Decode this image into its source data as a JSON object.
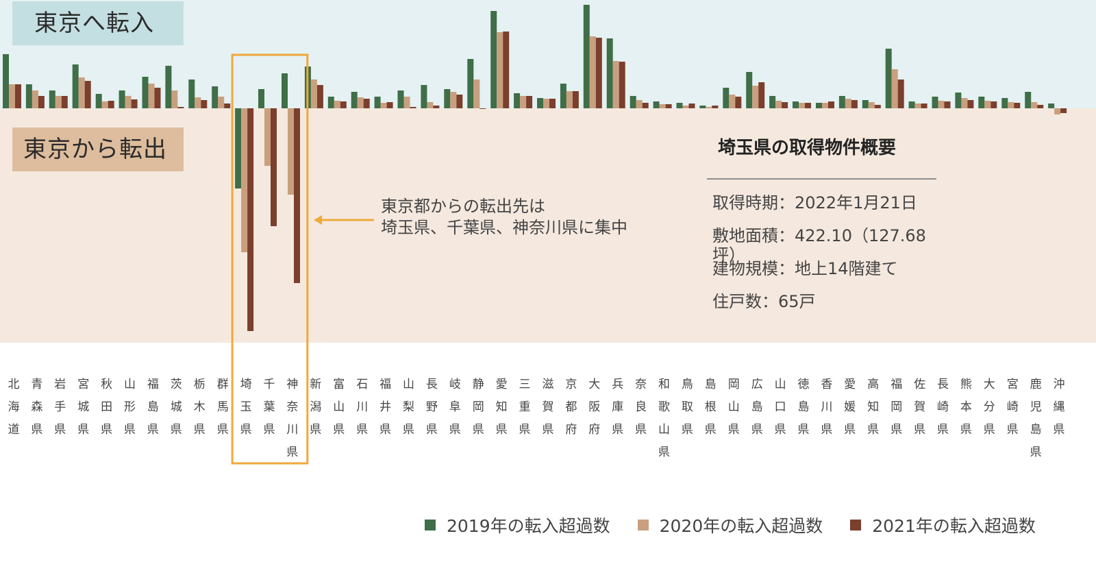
{
  "labels": {
    "inflow": "東京へ転入",
    "outflow": "東京から転出"
  },
  "annotation": {
    "line1": "東京都からの転出先は",
    "line2": "埼玉県、千葉県、神奈川県に集中"
  },
  "panel": {
    "title": "埼玉県の取得物件概要",
    "items": [
      "取得時期：2022年1月21日",
      "敷地面積：422.10（127.68坪）",
      "建物規模：地上14階建て",
      "住戸数：65戸"
    ]
  },
  "colors": {
    "2019": "#3f6e48",
    "2020": "#c9a07f",
    "2021": "#7b3f2e",
    "inflow_bg": "#e5f1f2",
    "outflow_bg": "#f5e9df",
    "highlight": "#f0a93b",
    "arrow": "#f0a93b"
  },
  "chart_data": {
    "type": "bar",
    "categories": [
      "北海道",
      "青森県",
      "岩手県",
      "宮城県",
      "秋田県",
      "山形県",
      "福島県",
      "茨城県",
      "栃木県",
      "群馬県",
      "埼玉県",
      "千葉県",
      "神奈川県",
      "新潟県",
      "富山県",
      "石川県",
      "福井県",
      "山梨県",
      "長野県",
      "岐阜県",
      "静岡県",
      "愛知県",
      "三重県",
      "滋賀県",
      "京都府",
      "大阪府",
      "兵庫県",
      "奈良県",
      "和歌山県",
      "鳥取県",
      "島根県",
      "岡山県",
      "広島県",
      "山口県",
      "徳島県",
      "香川県",
      "愛媛県",
      "高知県",
      "福岡県",
      "佐賀県",
      "長崎県",
      "熊本県",
      "大分県",
      "宮崎県",
      "鹿児島県",
      "沖縄県"
    ],
    "series": [
      {
        "name": "2019年の転入超過数",
        "values": [
          79,
          35,
          26,
          64,
          21,
          26,
          46,
          62,
          42,
          32,
          -117,
          28,
          51,
          61,
          17,
          24,
          17,
          26,
          34,
          28,
          72,
          142,
          22,
          15,
          36,
          151,
          102,
          18,
          10,
          8,
          4,
          30,
          53,
          18,
          10,
          8,
          18,
          12,
          87,
          10,
          17,
          23,
          17,
          15,
          24,
          7
        ]
      },
      {
        "name": "2020年の転入超過数",
        "values": [
          35,
          26,
          18,
          45,
          10,
          18,
          36,
          26,
          16,
          17,
          -210,
          -84,
          -126,
          42,
          11,
          16,
          8,
          17,
          9,
          24,
          42,
          111,
          18,
          14,
          25,
          105,
          69,
          12,
          6,
          4,
          2,
          20,
          33,
          11,
          8,
          8,
          14,
          9,
          57,
          7,
          11,
          15,
          11,
          9,
          9,
          -9
        ]
      },
      {
        "name": "2021年の転入超過数",
        "values": [
          35,
          18,
          18,
          40,
          11,
          13,
          30,
          2,
          12,
          7,
          -325,
          -172,
          -255,
          34,
          10,
          14,
          9,
          2,
          4,
          20,
          0,
          112,
          18,
          14,
          25,
          103,
          68,
          8,
          6,
          7,
          4,
          17,
          38,
          9,
          8,
          10,
          12,
          5,
          42,
          7,
          10,
          12,
          10,
          8,
          5,
          -7
        ]
      }
    ],
    "highlight_categories": [
      "埼玉県",
      "千葉県",
      "神奈川県"
    ],
    "legend": "bottom-right",
    "ylim": [
      -330,
      155
    ],
    "grid": false
  }
}
